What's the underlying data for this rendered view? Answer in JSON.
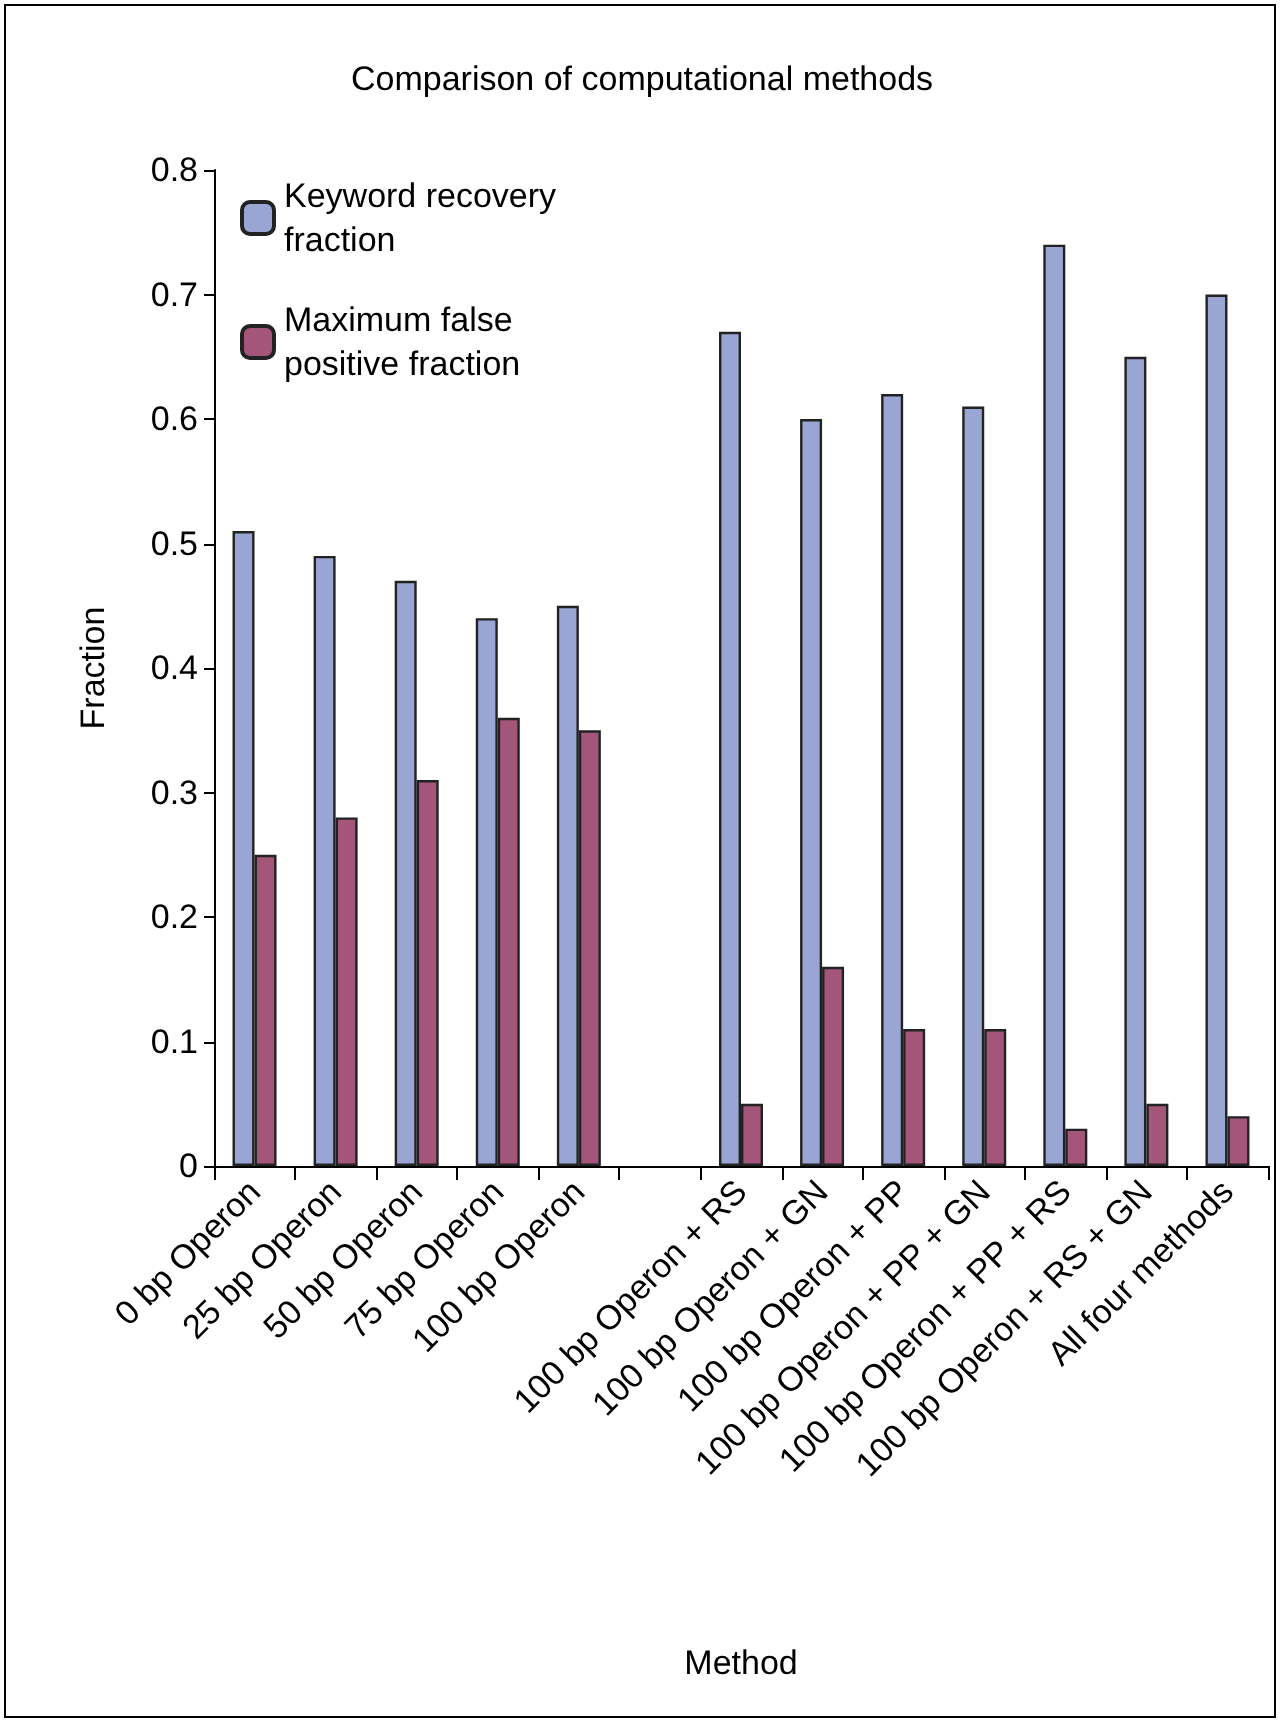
{
  "chart_data": {
    "type": "bar",
    "title": "Comparison of computational methods",
    "xlabel": "Method",
    "ylabel": "Fraction",
    "categories": [
      "0 bp Operon",
      "25 bp Operon",
      "50 bp Operon",
      "75 bp Operon",
      "100 bp Operon",
      null,
      "100 bp Operon + RS",
      "100 bp Operon + GN",
      "100 bp Operon + PP",
      "100 bp Operon + PP + GN",
      "100 bp Operon + PP + RS",
      "100 bp Operon + RS + GN",
      "All four methods"
    ],
    "series": [
      {
        "name": "Keyword recovery fraction",
        "color": "#99a6d4",
        "values": [
          0.51,
          0.49,
          0.47,
          0.44,
          0.45,
          null,
          0.67,
          0.6,
          0.62,
          0.61,
          0.74,
          0.65,
          0.7
        ]
      },
      {
        "name": "Maximum false positive fraction",
        "color": "#a3557a",
        "values": [
          0.25,
          0.28,
          0.31,
          0.36,
          0.35,
          null,
          0.05,
          0.16,
          0.11,
          0.11,
          0.03,
          0.05,
          0.04
        ]
      }
    ],
    "ylim": [
      0,
      0.8
    ],
    "yticks": [
      0,
      0.1,
      0.2,
      0.3,
      0.4,
      0.5,
      0.6,
      0.7,
      0.8
    ],
    "grid": false,
    "legend": "top left"
  }
}
